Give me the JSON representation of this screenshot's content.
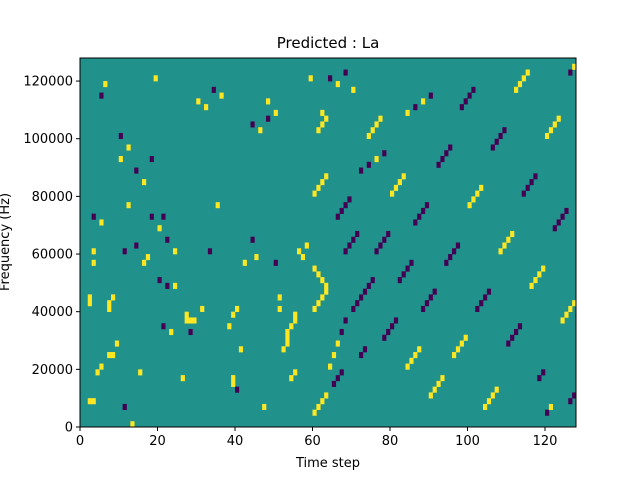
{
  "chart_data": {
    "type": "heatmap",
    "title": "Predicted : La",
    "xlabel": "Time step",
    "ylabel": "Frequency (Hz)",
    "xlim": [
      0,
      128
    ],
    "ylim": [
      0,
      128000
    ],
    "xticks": [
      0,
      20,
      40,
      60,
      80,
      100,
      120
    ],
    "xtick_labels": [
      "0",
      "20",
      "40",
      "60",
      "80",
      "100",
      "120"
    ],
    "yticks": [
      0,
      20000,
      40000,
      60000,
      80000,
      100000,
      120000
    ],
    "ytick_labels": [
      "0",
      "20000",
      "40000",
      "60000",
      "80000",
      "100000",
      "120000"
    ],
    "colormap": "viridis",
    "background_value": 0,
    "colors": {
      "background": "#21918c",
      "high": "#fde725",
      "low": "#440154"
    },
    "time_steps": 128,
    "frequency_bins": 64,
    "cells": [
      {
        "t": 2,
        "f": 4,
        "v": 1
      },
      {
        "t": 3,
        "f": 4,
        "v": 1
      },
      {
        "t": 4,
        "f": 9,
        "v": 1
      },
      {
        "t": 5,
        "f": 10,
        "v": 1
      },
      {
        "t": 7,
        "f": 12,
        "v": 1
      },
      {
        "t": 8,
        "f": 12,
        "v": 1
      },
      {
        "t": 9,
        "f": 14,
        "v": 1
      },
      {
        "t": 13,
        "f": 0,
        "v": 1
      },
      {
        "t": 11,
        "f": 3,
        "v": -1
      },
      {
        "t": 3,
        "f": 28,
        "v": 1
      },
      {
        "t": 3,
        "f": 30,
        "v": 1
      },
      {
        "t": 3,
        "f": 36,
        "v": -1
      },
      {
        "t": 6,
        "f": 59,
        "v": 1
      },
      {
        "t": 5,
        "f": 57,
        "v": -1
      },
      {
        "t": 7,
        "f": 20,
        "v": 1
      },
      {
        "t": 7,
        "f": 21,
        "v": 1
      },
      {
        "t": 8,
        "f": 22,
        "v": 1
      },
      {
        "t": 2,
        "f": 21,
        "v": 1
      },
      {
        "t": 2,
        "f": 22,
        "v": 1
      },
      {
        "t": 5,
        "f": 35,
        "v": 1
      },
      {
        "t": 10,
        "f": 46,
        "v": 1
      },
      {
        "t": 11,
        "f": 30,
        "v": -1
      },
      {
        "t": 12,
        "f": 38,
        "v": 1
      },
      {
        "t": 14,
        "f": 31,
        "v": -1
      },
      {
        "t": 15,
        "f": 9,
        "v": 1
      },
      {
        "t": 16,
        "f": 28,
        "v": 1
      },
      {
        "t": 17,
        "f": 29,
        "v": 1
      },
      {
        "t": 18,
        "f": 46,
        "v": -1
      },
      {
        "t": 19,
        "f": 60,
        "v": 1
      },
      {
        "t": 20,
        "f": 25,
        "v": -1
      },
      {
        "t": 22,
        "f": 24,
        "v": -1
      },
      {
        "t": 24,
        "f": 24,
        "v": 1
      },
      {
        "t": 21,
        "f": 17,
        "v": -1
      },
      {
        "t": 23,
        "f": 16,
        "v": 1
      },
      {
        "t": 21,
        "f": 36,
        "v": -1
      },
      {
        "t": 26,
        "f": 8,
        "v": 1
      },
      {
        "t": 27,
        "f": 18,
        "v": 1
      },
      {
        "t": 27,
        "f": 19,
        "v": 1
      },
      {
        "t": 28,
        "f": 18,
        "v": 1
      },
      {
        "t": 29,
        "f": 18,
        "v": 1
      },
      {
        "t": 28,
        "f": 16,
        "v": -1
      },
      {
        "t": 31,
        "f": 20,
        "v": 1
      },
      {
        "t": 33,
        "f": 30,
        "v": -1
      },
      {
        "t": 35,
        "f": 38,
        "v": 1
      },
      {
        "t": 38,
        "f": 17,
        "v": 1
      },
      {
        "t": 39,
        "f": 19,
        "v": 1
      },
      {
        "t": 40,
        "f": 20,
        "v": 1
      },
      {
        "t": 41,
        "f": 13,
        "v": 1
      },
      {
        "t": 39,
        "f": 7,
        "v": 1
      },
      {
        "t": 39,
        "f": 8,
        "v": 1
      },
      {
        "t": 40,
        "f": 6,
        "v": -1
      },
      {
        "t": 42,
        "f": 28,
        "v": 1
      },
      {
        "t": 44,
        "f": 32,
        "v": -1
      },
      {
        "t": 45,
        "f": 29,
        "v": 1
      },
      {
        "t": 47,
        "f": 3,
        "v": 1
      },
      {
        "t": 48,
        "f": 56,
        "v": 1
      },
      {
        "t": 50,
        "f": 28,
        "v": -1
      },
      {
        "t": 51,
        "f": 20,
        "v": 1
      },
      {
        "t": 51,
        "f": 22,
        "v": 1
      },
      {
        "t": 52,
        "f": 13,
        "v": 1
      },
      {
        "t": 53,
        "f": 14,
        "v": 1
      },
      {
        "t": 53,
        "f": 15,
        "v": 1
      },
      {
        "t": 53,
        "f": 16,
        "v": 1
      },
      {
        "t": 54,
        "f": 17,
        "v": 1
      },
      {
        "t": 55,
        "f": 18,
        "v": 1
      },
      {
        "t": 55,
        "f": 19,
        "v": 1
      },
      {
        "t": 54,
        "f": 8,
        "v": 1
      },
      {
        "t": 55,
        "f": 9,
        "v": 1
      },
      {
        "t": 56,
        "f": 30,
        "v": 1
      },
      {
        "t": 57,
        "f": 29,
        "v": 1
      },
      {
        "t": 58,
        "f": 31,
        "v": 1
      },
      {
        "t": 59,
        "f": 60,
        "v": 1
      },
      {
        "t": 60,
        "f": 2,
        "v": 1
      },
      {
        "t": 61,
        "f": 3,
        "v": 1
      },
      {
        "t": 62,
        "f": 4,
        "v": 1
      },
      {
        "t": 63,
        "f": 5,
        "v": 1
      },
      {
        "t": 60,
        "f": 20,
        "v": 1
      },
      {
        "t": 61,
        "f": 21,
        "v": 1
      },
      {
        "t": 62,
        "f": 22,
        "v": 1
      },
      {
        "t": 63,
        "f": 23,
        "v": 1
      },
      {
        "t": 60,
        "f": 27,
        "v": 1
      },
      {
        "t": 61,
        "f": 26,
        "v": 1
      },
      {
        "t": 62,
        "f": 25,
        "v": 1
      },
      {
        "t": 63,
        "f": 24,
        "v": 1
      },
      {
        "t": 60,
        "f": 40,
        "v": 1
      },
      {
        "t": 61,
        "f": 41,
        "v": 1
      },
      {
        "t": 62,
        "f": 42,
        "v": 1
      },
      {
        "t": 63,
        "f": 43,
        "v": 1
      },
      {
        "t": 61,
        "f": 51,
        "v": 1
      },
      {
        "t": 62,
        "f": 52,
        "v": 1
      },
      {
        "t": 63,
        "f": 53,
        "v": 1
      },
      {
        "t": 62,
        "f": 54,
        "v": 1
      },
      {
        "t": 64,
        "f": 10,
        "v": 1
      },
      {
        "t": 65,
        "f": 7,
        "v": -1
      },
      {
        "t": 66,
        "f": 8,
        "v": -1
      },
      {
        "t": 67,
        "f": 9,
        "v": -1
      },
      {
        "t": 65,
        "f": 12,
        "v": 1
      },
      {
        "t": 66,
        "f": 14,
        "v": 1
      },
      {
        "t": 67,
        "f": 16,
        "v": -1
      },
      {
        "t": 68,
        "f": 18,
        "v": -1
      },
      {
        "t": 66,
        "f": 36,
        "v": -1
      },
      {
        "t": 67,
        "f": 37,
        "v": -1
      },
      {
        "t": 68,
        "f": 38,
        "v": -1
      },
      {
        "t": 69,
        "f": 39,
        "v": -1
      },
      {
        "t": 68,
        "f": 30,
        "v": -1
      },
      {
        "t": 69,
        "f": 31,
        "v": -1
      },
      {
        "t": 70,
        "f": 32,
        "v": -1
      },
      {
        "t": 71,
        "f": 33,
        "v": -1
      },
      {
        "t": 70,
        "f": 20,
        "v": -1
      },
      {
        "t": 71,
        "f": 21,
        "v": -1
      },
      {
        "t": 72,
        "f": 22,
        "v": -1
      },
      {
        "t": 73,
        "f": 23,
        "v": -1
      },
      {
        "t": 72,
        "f": 12,
        "v": -1
      },
      {
        "t": 73,
        "f": 13,
        "v": -1
      },
      {
        "t": 74,
        "f": 24,
        "v": -1
      },
      {
        "t": 75,
        "f": 25,
        "v": -1
      },
      {
        "t": 74,
        "f": 50,
        "v": 1
      },
      {
        "t": 75,
        "f": 51,
        "v": 1
      },
      {
        "t": 76,
        "f": 52,
        "v": 1
      },
      {
        "t": 77,
        "f": 53,
        "v": 1
      },
      {
        "t": 76,
        "f": 30,
        "v": -1
      },
      {
        "t": 77,
        "f": 31,
        "v": -1
      },
      {
        "t": 78,
        "f": 32,
        "v": -1
      },
      {
        "t": 79,
        "f": 33,
        "v": -1
      },
      {
        "t": 78,
        "f": 15,
        "v": -1
      },
      {
        "t": 79,
        "f": 16,
        "v": -1
      },
      {
        "t": 80,
        "f": 17,
        "v": -1
      },
      {
        "t": 81,
        "f": 18,
        "v": -1
      },
      {
        "t": 80,
        "f": 40,
        "v": 1
      },
      {
        "t": 81,
        "f": 41,
        "v": 1
      },
      {
        "t": 82,
        "f": 42,
        "v": 1
      },
      {
        "t": 83,
        "f": 43,
        "v": 1
      },
      {
        "t": 82,
        "f": 25,
        "v": -1
      },
      {
        "t": 83,
        "f": 26,
        "v": -1
      },
      {
        "t": 84,
        "f": 27,
        "v": -1
      },
      {
        "t": 85,
        "f": 28,
        "v": -1
      },
      {
        "t": 84,
        "f": 10,
        "v": 1
      },
      {
        "t": 85,
        "f": 11,
        "v": 1
      },
      {
        "t": 86,
        "f": 12,
        "v": 1
      },
      {
        "t": 87,
        "f": 13,
        "v": 1
      },
      {
        "t": 86,
        "f": 35,
        "v": -1
      },
      {
        "t": 87,
        "f": 36,
        "v": -1
      },
      {
        "t": 88,
        "f": 37,
        "v": -1
      },
      {
        "t": 89,
        "f": 38,
        "v": -1
      },
      {
        "t": 88,
        "f": 20,
        "v": -1
      },
      {
        "t": 89,
        "f": 21,
        "v": -1
      },
      {
        "t": 90,
        "f": 22,
        "v": -1
      },
      {
        "t": 91,
        "f": 23,
        "v": -1
      },
      {
        "t": 90,
        "f": 5,
        "v": 1
      },
      {
        "t": 91,
        "f": 6,
        "v": 1
      },
      {
        "t": 92,
        "f": 7,
        "v": 1
      },
      {
        "t": 93,
        "f": 8,
        "v": 1
      },
      {
        "t": 92,
        "f": 45,
        "v": -1
      },
      {
        "t": 93,
        "f": 46,
        "v": -1
      },
      {
        "t": 94,
        "f": 47,
        "v": -1
      },
      {
        "t": 95,
        "f": 48,
        "v": -1
      },
      {
        "t": 94,
        "f": 28,
        "v": -1
      },
      {
        "t": 95,
        "f": 29,
        "v": -1
      },
      {
        "t": 96,
        "f": 30,
        "v": -1
      },
      {
        "t": 97,
        "f": 31,
        "v": -1
      },
      {
        "t": 96,
        "f": 12,
        "v": 1
      },
      {
        "t": 97,
        "f": 13,
        "v": 1
      },
      {
        "t": 98,
        "f": 14,
        "v": 1
      },
      {
        "t": 99,
        "f": 15,
        "v": 1
      },
      {
        "t": 98,
        "f": 55,
        "v": -1
      },
      {
        "t": 99,
        "f": 56,
        "v": -1
      },
      {
        "t": 100,
        "f": 57,
        "v": -1
      },
      {
        "t": 101,
        "f": 58,
        "v": -1
      },
      {
        "t": 100,
        "f": 38,
        "v": 1
      },
      {
        "t": 101,
        "f": 39,
        "v": 1
      },
      {
        "t": 102,
        "f": 40,
        "v": 1
      },
      {
        "t": 103,
        "f": 41,
        "v": 1
      },
      {
        "t": 102,
        "f": 20,
        "v": -1
      },
      {
        "t": 103,
        "f": 21,
        "v": -1
      },
      {
        "t": 104,
        "f": 22,
        "v": -1
      },
      {
        "t": 105,
        "f": 23,
        "v": -1
      },
      {
        "t": 104,
        "f": 3,
        "v": 1
      },
      {
        "t": 105,
        "f": 4,
        "v": 1
      },
      {
        "t": 106,
        "f": 5,
        "v": 1
      },
      {
        "t": 107,
        "f": 6,
        "v": 1
      },
      {
        "t": 106,
        "f": 48,
        "v": -1
      },
      {
        "t": 107,
        "f": 49,
        "v": -1
      },
      {
        "t": 108,
        "f": 50,
        "v": -1
      },
      {
        "t": 109,
        "f": 51,
        "v": -1
      },
      {
        "t": 108,
        "f": 30,
        "v": 1
      },
      {
        "t": 109,
        "f": 31,
        "v": 1
      },
      {
        "t": 110,
        "f": 32,
        "v": 1
      },
      {
        "t": 111,
        "f": 33,
        "v": 1
      },
      {
        "t": 110,
        "f": 14,
        "v": -1
      },
      {
        "t": 111,
        "f": 15,
        "v": -1
      },
      {
        "t": 112,
        "f": 16,
        "v": -1
      },
      {
        "t": 113,
        "f": 17,
        "v": -1
      },
      {
        "t": 112,
        "f": 58,
        "v": 1
      },
      {
        "t": 113,
        "f": 59,
        "v": 1
      },
      {
        "t": 114,
        "f": 60,
        "v": 1
      },
      {
        "t": 115,
        "f": 61,
        "v": 1
      },
      {
        "t": 114,
        "f": 40,
        "v": -1
      },
      {
        "t": 115,
        "f": 41,
        "v": -1
      },
      {
        "t": 116,
        "f": 42,
        "v": -1
      },
      {
        "t": 117,
        "f": 43,
        "v": -1
      },
      {
        "t": 116,
        "f": 24,
        "v": 1
      },
      {
        "t": 117,
        "f": 25,
        "v": 1
      },
      {
        "t": 118,
        "f": 26,
        "v": 1
      },
      {
        "t": 119,
        "f": 27,
        "v": 1
      },
      {
        "t": 118,
        "f": 8,
        "v": -1
      },
      {
        "t": 119,
        "f": 9,
        "v": -1
      },
      {
        "t": 120,
        "f": 2,
        "v": -1
      },
      {
        "t": 121,
        "f": 3,
        "v": 1
      },
      {
        "t": 120,
        "f": 50,
        "v": 1
      },
      {
        "t": 121,
        "f": 51,
        "v": 1
      },
      {
        "t": 122,
        "f": 52,
        "v": 1
      },
      {
        "t": 123,
        "f": 53,
        "v": 1
      },
      {
        "t": 122,
        "f": 34,
        "v": -1
      },
      {
        "t": 123,
        "f": 35,
        "v": -1
      },
      {
        "t": 124,
        "f": 36,
        "v": -1
      },
      {
        "t": 125,
        "f": 37,
        "v": -1
      },
      {
        "t": 124,
        "f": 18,
        "v": 1
      },
      {
        "t": 125,
        "f": 19,
        "v": 1
      },
      {
        "t": 126,
        "f": 20,
        "v": 1
      },
      {
        "t": 127,
        "f": 21,
        "v": 1
      },
      {
        "t": 126,
        "f": 4,
        "v": -1
      },
      {
        "t": 127,
        "f": 5,
        "v": -1
      },
      {
        "t": 127,
        "f": 62,
        "v": 1
      },
      {
        "t": 126,
        "f": 61,
        "v": -1
      },
      {
        "t": 30,
        "f": 56,
        "v": 1
      },
      {
        "t": 32,
        "f": 55,
        "v": 1
      },
      {
        "t": 34,
        "f": 58,
        "v": -1
      },
      {
        "t": 36,
        "f": 57,
        "v": 1
      },
      {
        "t": 44,
        "f": 52,
        "v": -1
      },
      {
        "t": 46,
        "f": 51,
        "v": 1
      },
      {
        "t": 48,
        "f": 53,
        "v": -1
      },
      {
        "t": 50,
        "f": 54,
        "v": 1
      },
      {
        "t": 64,
        "f": 60,
        "v": -1
      },
      {
        "t": 66,
        "f": 59,
        "v": 1
      },
      {
        "t": 68,
        "f": 61,
        "v": -1
      },
      {
        "t": 70,
        "f": 58,
        "v": 1
      },
      {
        "t": 72,
        "f": 44,
        "v": -1
      },
      {
        "t": 74,
        "f": 45,
        "v": -1
      },
      {
        "t": 76,
        "f": 46,
        "v": 1
      },
      {
        "t": 78,
        "f": 47,
        "v": -1
      },
      {
        "t": 84,
        "f": 54,
        "v": 1
      },
      {
        "t": 86,
        "f": 55,
        "v": -1
      },
      {
        "t": 88,
        "f": 56,
        "v": 1
      },
      {
        "t": 90,
        "f": 57,
        "v": -1
      },
      {
        "t": 10,
        "f": 50,
        "v": -1
      },
      {
        "t": 12,
        "f": 48,
        "v": 1
      },
      {
        "t": 14,
        "f": 44,
        "v": -1
      },
      {
        "t": 16,
        "f": 42,
        "v": 1
      },
      {
        "t": 18,
        "f": 36,
        "v": -1
      },
      {
        "t": 20,
        "f": 34,
        "v": 1
      },
      {
        "t": 22,
        "f": 32,
        "v": -1
      },
      {
        "t": 24,
        "f": 30,
        "v": 1
      }
    ]
  }
}
